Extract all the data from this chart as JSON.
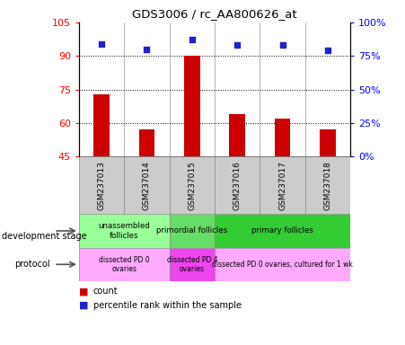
{
  "title": "GDS3006 / rc_AA800626_at",
  "samples": [
    "GSM237013",
    "GSM237014",
    "GSM237015",
    "GSM237016",
    "GSM237017",
    "GSM237018"
  ],
  "counts": [
    73,
    57,
    90,
    64,
    62,
    57
  ],
  "percentiles": [
    84,
    80,
    87,
    83,
    83,
    79
  ],
  "ylim_left": [
    45,
    105
  ],
  "ylim_right": [
    0,
    100
  ],
  "yticks_left": [
    45,
    60,
    75,
    90,
    105
  ],
  "yticks_right": [
    0,
    25,
    50,
    75,
    100
  ],
  "ytick_labels_right": [
    "0%",
    "25%",
    "50%",
    "75%",
    "100%"
  ],
  "bar_color": "#cc0000",
  "dot_color": "#2222cc",
  "bar_bottom": 45,
  "development_stages": [
    {
      "label": "unassembled\nfollicles",
      "start": 0,
      "end": 2,
      "color": "#99ff99"
    },
    {
      "label": "primordial follicles",
      "start": 2,
      "end": 3,
      "color": "#66dd66"
    },
    {
      "label": "primary follicles",
      "start": 3,
      "end": 6,
      "color": "#33cc33"
    }
  ],
  "protocols": [
    {
      "label": "dissected PD 0\novaries",
      "start": 0,
      "end": 2,
      "color": "#ffaaff"
    },
    {
      "label": "dissected PD 4\novaries",
      "start": 2,
      "end": 3,
      "color": "#ee44ee"
    },
    {
      "label": "dissected PD 0 ovaries, cultured for 1 wk",
      "start": 3,
      "end": 6,
      "color": "#ffaaff"
    }
  ],
  "legend_count_label": "count",
  "legend_percentile_label": "percentile rank within the sample",
  "sample_box_color": "#cccccc",
  "grid_yticks": [
    60,
    75,
    90
  ]
}
